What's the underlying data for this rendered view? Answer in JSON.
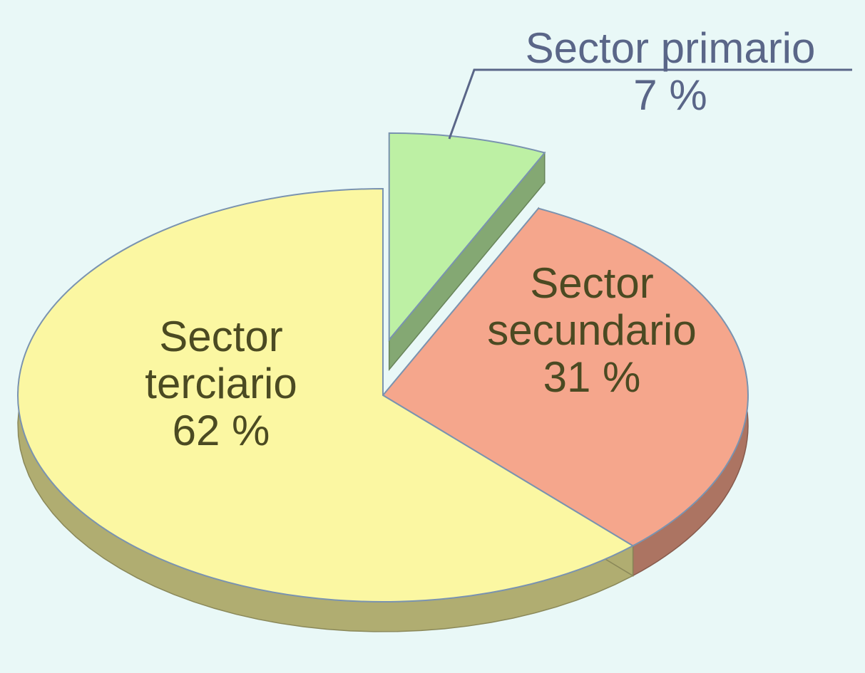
{
  "chart_data": {
    "type": "pie",
    "categories": [
      "Sector primario",
      "Sector secundario",
      "Sector terciario"
    ],
    "values": [
      7,
      31,
      62
    ],
    "value_labels": [
      "7 %",
      "31 %",
      "62 %"
    ],
    "colors": [
      "#bdf0a4",
      "#f5a68c",
      "#fbf7a2"
    ]
  }
}
